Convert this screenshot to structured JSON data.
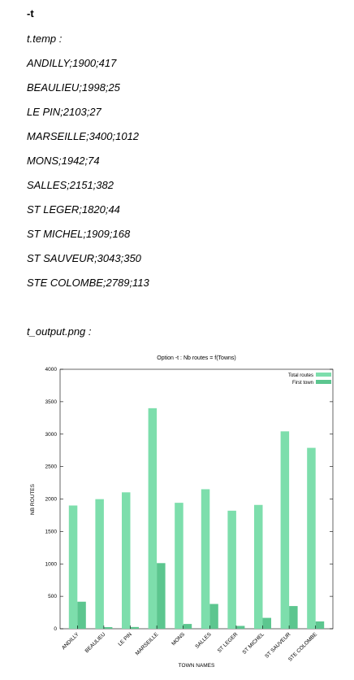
{
  "document": {
    "flag": "-t",
    "input_heading": "t.temp :",
    "input_lines": [
      "ANDILLY;1900;417",
      "BEAULIEU;1998;25",
      "LE PIN;2103;27",
      "MARSEILLE;3400;1012",
      "MONS;1942;74",
      "SALLES;2151;382",
      "ST LEGER;1820;44",
      "ST MICHEL;1909;168",
      "ST SAUVEUR;3043;350",
      "STE COLOMBE;2789;113"
    ],
    "output_heading": "t_output.png :"
  },
  "chart_data": {
    "type": "bar",
    "title": "Option -t : Nb routes = f(Towns)",
    "xlabel": "TOWN NAMES",
    "ylabel": "NB ROUTES",
    "ylim": [
      0,
      4000
    ],
    "yticks": [
      "0",
      "500",
      "1000",
      "1500",
      "2000",
      "2500",
      "3000",
      "3500",
      "4000"
    ],
    "grid": false,
    "legend_position": "top-right",
    "categories": [
      "ANDILLY",
      "BEAULIEU",
      "LE PIN",
      "MARSEILLE",
      "MONS",
      "SALLES",
      "ST LEGER",
      "ST MICHEL",
      "ST SAUVEUR",
      "STE COLOMBE"
    ],
    "series": [
      {
        "name": "Total routes",
        "color": "#7ddeac",
        "values": [
          1900,
          1998,
          2103,
          3400,
          1942,
          2151,
          1820,
          1909,
          3043,
          2789
        ]
      },
      {
        "name": "First town",
        "color": "#5cc68f",
        "values": [
          417,
          25,
          27,
          1012,
          74,
          382,
          44,
          168,
          350,
          113
        ]
      }
    ]
  }
}
